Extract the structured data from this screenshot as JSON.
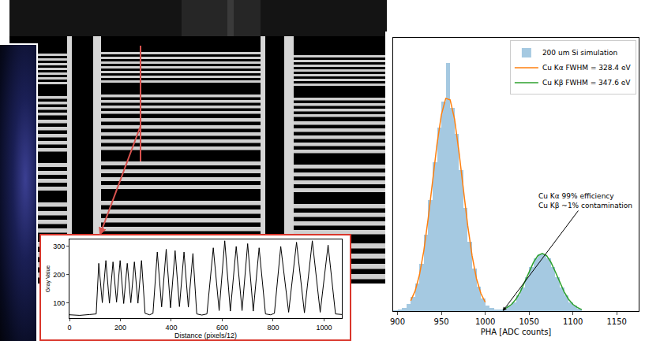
{
  "chart_data": [
    {
      "type": "line",
      "xlabel": "Distance (pixels/12)",
      "ylabel": "Gray Value",
      "color": "#000000",
      "x": [
        0,
        40,
        80,
        105,
        115,
        129,
        143,
        157,
        171,
        185,
        199,
        213,
        227,
        241,
        255,
        269,
        283,
        297,
        315,
        328,
        345,
        362,
        380,
        397,
        415,
        432,
        450,
        467,
        485,
        500,
        520,
        540,
        565,
        588,
        610,
        632,
        655,
        678,
        700,
        722,
        745,
        770,
        790,
        805,
        830,
        861,
        892,
        923,
        954,
        985,
        1016,
        1045,
        1070
      ],
      "values": [
        57,
        55,
        58,
        60,
        240,
        100,
        250,
        98,
        245,
        102,
        250,
        97,
        240,
        100,
        245,
        98,
        250,
        62,
        57,
        62,
        280,
        85,
        290,
        82,
        285,
        86,
        280,
        84,
        275,
        60,
        56,
        60,
        295,
        72,
        320,
        70,
        300,
        72,
        310,
        70,
        295,
        60,
        57,
        62,
        300,
        66,
        315,
        64,
        320,
        66,
        305,
        60,
        58
      ],
      "xlim": [
        0,
        1070
      ],
      "xticks": [
        0,
        200,
        400,
        600,
        800,
        1000
      ],
      "ylim": [
        45,
        325
      ],
      "yticks": [
        100,
        200,
        300
      ]
    },
    {
      "type": "histogram",
      "xlabel": "PHA [ADC counts]",
      "name": "200 um Si simulation",
      "color": "#1f77b4",
      "bins": [
        895,
        900,
        905,
        910,
        915,
        920,
        925,
        930,
        935,
        940,
        945,
        950,
        955,
        960,
        965,
        970,
        975,
        980,
        985,
        990,
        995,
        1000,
        1005,
        1010,
        1015,
        1020,
        1025,
        1030,
        1035,
        1040,
        1045,
        1050,
        1055,
        1060,
        1065,
        1070,
        1075,
        1080,
        1085,
        1090,
        1095,
        1100,
        1105,
        1110
      ],
      "values": [
        1,
        2,
        4,
        10,
        19,
        37,
        64,
        103,
        150,
        202,
        248,
        284,
        336,
        275,
        240,
        191,
        140,
        94,
        58,
        33,
        17,
        8,
        4,
        2,
        2,
        3,
        7,
        12,
        21,
        32,
        46,
        60,
        71,
        77,
        77,
        71,
        60,
        46,
        32,
        21,
        12,
        7,
        3
      ],
      "series": [
        {
          "name": "Cu Kα FWHM = 328.4 eV",
          "type": "line",
          "color": "#ff7f0e",
          "x": [
            915,
            920,
            925,
            930,
            935,
            940,
            945,
            950,
            955,
            960,
            965,
            970,
            975,
            980,
            985,
            990,
            995,
            1000
          ],
          "values": [
            14,
            27,
            49,
            82,
            126,
            176,
            226,
            266,
            288,
            286,
            260,
            216,
            166,
            116,
            75,
            44,
            24,
            12
          ]
        },
        {
          "name": "Cu Kβ FWHM = 347.6 eV",
          "type": "line",
          "color": "#2ca02c",
          "x": [
            1020,
            1025,
            1030,
            1035,
            1040,
            1045,
            1050,
            1055,
            1060,
            1065,
            1070,
            1075,
            1080,
            1085,
            1090,
            1095,
            1100,
            1105,
            1110
          ],
          "values": [
            2,
            5,
            9,
            16,
            26,
            39,
            53,
            66,
            75,
            78,
            75,
            66,
            53,
            39,
            26,
            16,
            9,
            5,
            2
          ]
        }
      ],
      "annotations": [
        {
          "text": [
            "Cu Kα 99% efficiency",
            "Cu Kβ ~1% contamination"
          ],
          "x": 1020,
          "y": 0
        }
      ],
      "xlim": [
        895,
        1175
      ],
      "xticks": [
        900,
        950,
        1000,
        1050,
        1100,
        1150
      ],
      "ylim": [
        0,
        370
      ],
      "tick_labels": "x",
      "legend": "upper right"
    }
  ]
}
